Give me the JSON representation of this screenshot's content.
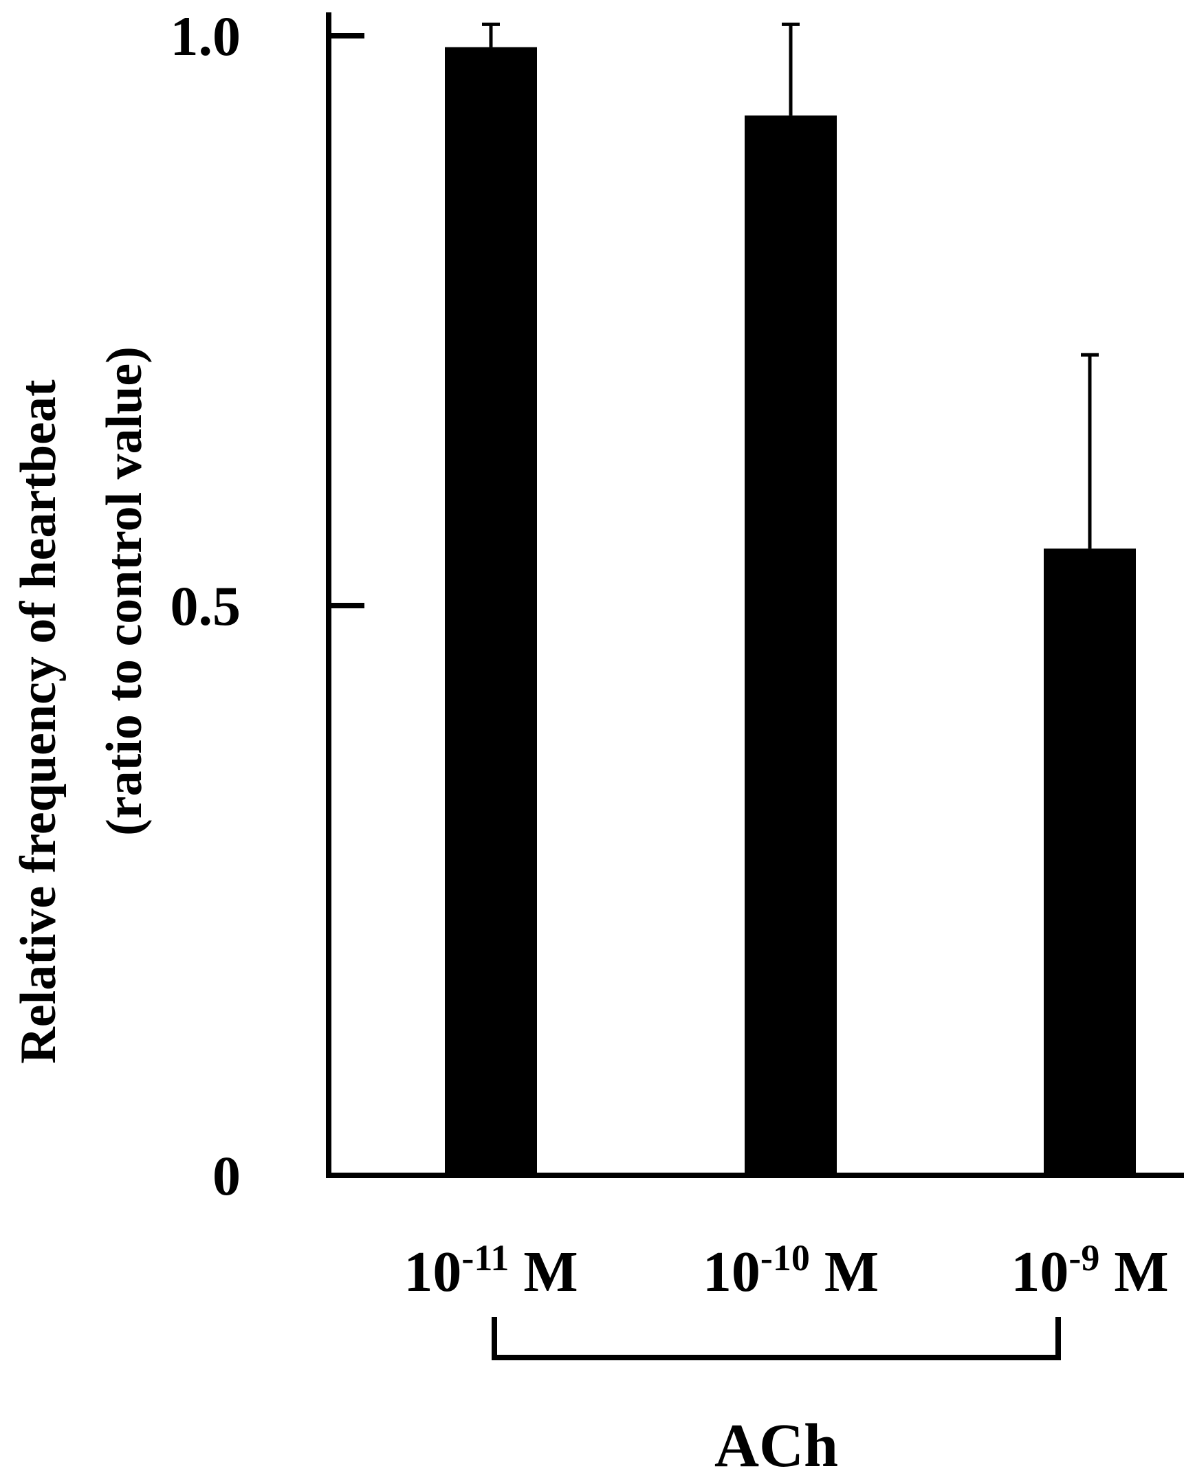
{
  "chart_data": {
    "type": "bar",
    "title": "",
    "ylabel_lines": [
      "Relative frequency of heartbeat",
      "(ratio to control value)"
    ],
    "ylim": [
      0,
      1.0
    ],
    "yticks": [
      {
        "value": 0,
        "label": "0"
      },
      {
        "value": 0.5,
        "label": "0.5"
      },
      {
        "value": 1.0,
        "label": "1.0"
      }
    ],
    "categories": [
      {
        "base": "10",
        "exponent": "-11",
        "unit": " M"
      },
      {
        "base": "10",
        "exponent": "-10",
        "unit": " M"
      },
      {
        "base": "10",
        "exponent": "-9",
        "unit": " M"
      }
    ],
    "values": [
      0.99,
      0.93,
      0.55
    ],
    "errors": [
      0.02,
      0.08,
      0.17
    ],
    "bar_color": "#000000",
    "group_label": "ACh",
    "grid": false,
    "legend": "none"
  }
}
